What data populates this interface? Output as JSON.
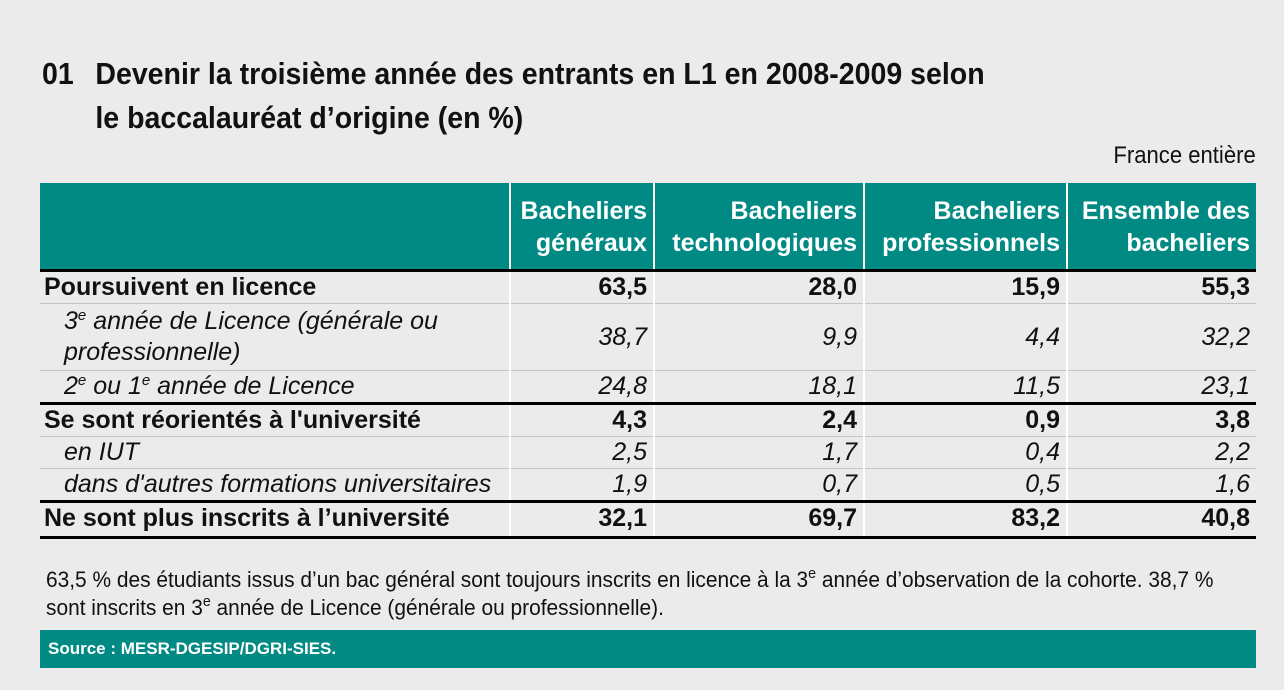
{
  "figure": {
    "number": "01",
    "title_line1": "Devenir la troisième année des entrants en L1 en 2008-2009 selon",
    "title_line2": "le baccalauréat d’origine (en %)",
    "scope": "France entière"
  },
  "table": {
    "headers": [
      {
        "line1": "",
        "line2": ""
      },
      {
        "line1": "Bacheliers",
        "line2": "généraux"
      },
      {
        "line1": "Bacheliers",
        "line2": "technologiques"
      },
      {
        "line1": "Bacheliers",
        "line2": "professionnels"
      },
      {
        "line1": "Ensemble des",
        "line2": "bacheliers"
      }
    ],
    "rows": [
      {
        "label": "Poursuivent en licence",
        "values": [
          "63,5",
          "28,0",
          "15,9",
          "55,3"
        ]
      },
      {
        "label_sup1": "e",
        "label_pre": "3",
        "label_post": " année de Licence (générale ou professionnelle)",
        "values": [
          "38,7",
          "9,9",
          "4,4",
          "32,2"
        ]
      },
      {
        "label_pre": "2",
        "label_sup1": "e",
        "label_mid": " ou 1",
        "label_sup2": "e",
        "label_post": " année de Licence",
        "values": [
          "24,8",
          "18,1",
          "11,5",
          "23,1"
        ]
      },
      {
        "label": "Se sont réorientés à l'université",
        "values": [
          "4,3",
          "2,4",
          "0,9",
          "3,8"
        ]
      },
      {
        "label": "en IUT",
        "values": [
          "2,5",
          "1,7",
          "0,4",
          "2,2"
        ]
      },
      {
        "label": "dans d'autres formations universitaires",
        "values": [
          "1,9",
          "0,7",
          "0,5",
          "1,6"
        ]
      },
      {
        "label": "Ne sont plus inscrits à l’université",
        "values": [
          "32,1",
          "69,7",
          "83,2",
          "40,8"
        ]
      }
    ]
  },
  "note": {
    "part1": "63,5 % des étudiants issus d’un bac général sont toujours inscrits en licence à la 3",
    "sup1": "e",
    "part2": " année d’observation de la cohorte. 38,7 % sont inscrits en 3",
    "sup2": "e",
    "part3": " année de Licence (générale ou professionnelle)."
  },
  "source": "Source : MESR-DGESIP/DGRI-SIES."
}
